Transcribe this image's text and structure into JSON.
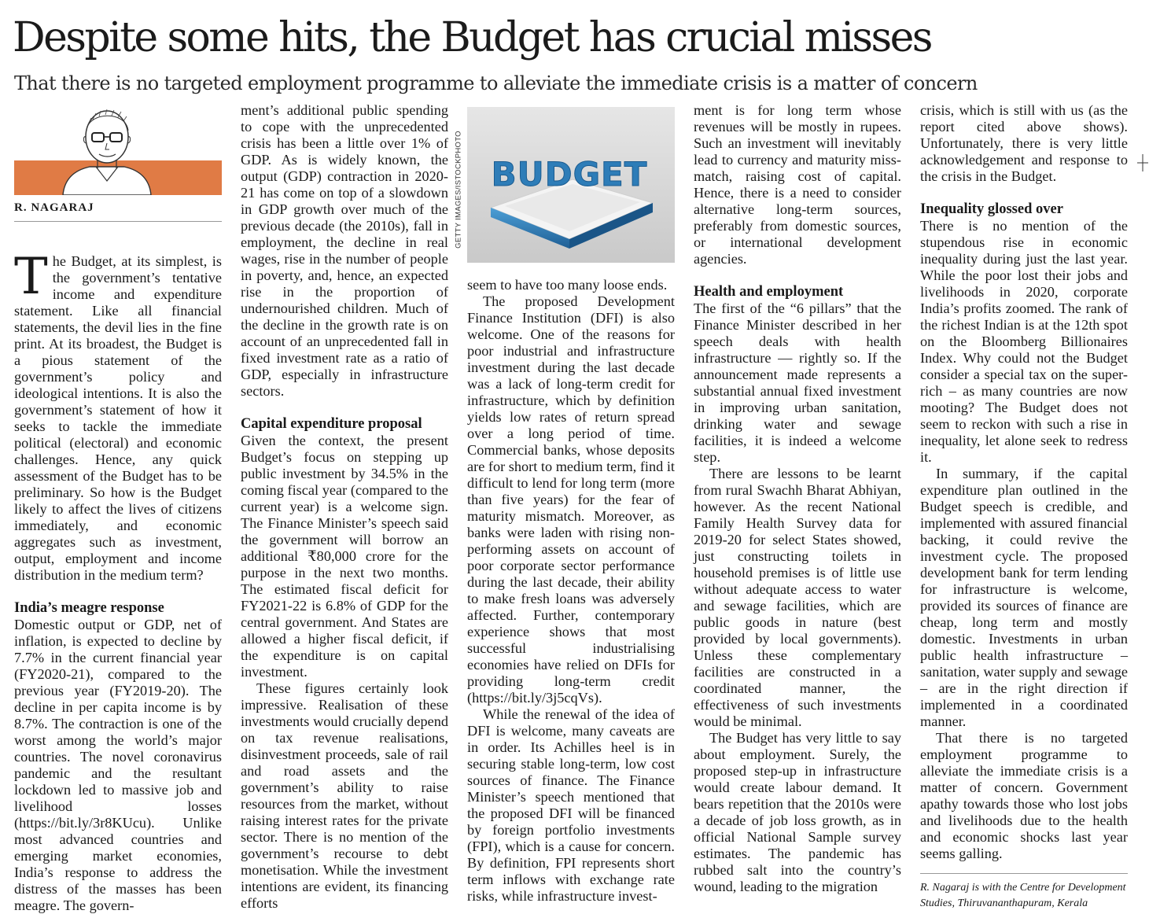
{
  "headline": "Despite some hits, the Budget has crucial misses",
  "deck": "That there is no targeted employment programme to alleviate the immediate crisis is a matter of concern",
  "author": {
    "name": "R. NAGARAJ",
    "portrait_icon": "author-portrait-sketch"
  },
  "photo": {
    "label": "BUDGET",
    "credit": "GETTY IMAGES/ISTOCKPHOTO"
  },
  "article": {
    "dropcap": "T",
    "col1": {
      "lede": "he Budget, at its simplest, is the government’s tentative income and expenditure statement. Like all financial statements, the devil lies in the fine print. At its broadest, the Budget is a pious statement of the government’s policy and ideological intentions. It is also the government’s statement of how it seeks to tackle the immediate political (electoral) and economic challenges. Hence, any quick assessment of the Budget has to be preliminary. So how is the Budget likely to affect the lives of citizens immediately, and economic aggregates such as investment, output, employment and income distribution in the medium term?",
      "h1": "India’s meagre response",
      "p1": "Domestic output or GDP, net of inflation, is expected to decline by 7.7% in the current financial year (FY2020-21), compared to the previous year (FY2019-20). The decline in per capita income is by 8.7%. The contraction is one of the worst among the world’s major countries. The novel coronavirus pandemic and the resultant lockdown led to massive job and livelihood losses (https://bit.ly/3r8KUcu). Unlike most advanced countries and emerging market economies, India’s response to address the distress of the masses has been meagre. The govern-"
    },
    "col2": {
      "p1": "ment’s additional public spending to cope with the unprecedented crisis has been a little over 1% of GDP. As is widely known, the output (GDP) contraction in 2020-21 has come on top of a slowdown in GDP growth over much of the previous decade (the 2010s), fall in employment, the decline in real wages, rise in the number of people in poverty, and, hence, an expected rise in the proportion of undernourished children. Much of the decline in the growth rate is on account of an unprecedented fall in fixed investment rate as a ratio of GDP, especially in infrastructure sectors.",
      "h1": "Capital expenditure proposal",
      "p2": "Given the context, the present Budget’s focus on stepping up public investment by 34.5% in the coming fiscal year (compared to the current year) is a welcome sign. The Finance Minister’s speech said the government will borrow an additional ₹80,000 crore for the purpose in the next two months. The estimated fiscal deficit for FY2021-22 is 6.8% of GDP for the central government. And States are allowed a higher fiscal deficit, if the expenditure is on capital investment.",
      "p3": "These figures certainly look impressive. Realisation of these investments would crucially depend on tax revenue realisations, disinvestment proceeds, sale of rail and road assets and the government’s ability to raise resources from the market, without raising interest rates for the private sector. There is no mention of the government’s recourse to debt monetisation. While the investment intentions are evident, its financing efforts"
    },
    "col3": {
      "p1": "seem to have too many loose ends.",
      "p2": "The proposed Development Finance Institution (DFI) is also welcome. One of the reasons for poor industrial and infrastructure investment during the last decade was a lack of long-term credit for infrastructure, which by definition yields low rates of return spread over a long period of time. Commercial banks, whose deposits are for short to medium term, find it difficult to lend for long term (more than five years) for the fear of maturity mismatch. Moreover, as banks were laden with rising non-performing assets on account of poor corporate sector performance during the last decade, their ability to make fresh loans was adversely affected. Further, contemporary experience shows that most successful industrialising economies have relied on DFIs for providing long-term credit (https://bit.ly/3j5cqVs).",
      "p3": "While the renewal of the idea of DFI is welcome, many caveats are in order. Its Achilles heel is in securing stable long-term, low cost sources of finance. The Finance Minister’s speech mentioned that the proposed DFI will be financed by foreign portfolio investments (FPI), which is a cause for concern. By definition, FPI represents short term inflows with exchange rate risks, while infrastructure invest-"
    },
    "col4": {
      "p1": "ment is for long term whose revenues will be mostly in rupees. Such an investment will inevitably lead to currency and maturity miss-match, raising cost of capital. Hence, there is a need to consider alternative long-term sources, preferably from domestic sources, or international development agencies.",
      "h1": "Health and employment",
      "p2": "The first of the “6 pillars” that the Finance Minister described in her speech deals with health infrastructure — rightly so. If the announcement made represents a substantial annual fixed investment in improving urban sanitation, drinking water and sewage facilities, it is indeed a welcome step.",
      "p3": "There are lessons to be learnt from rural Swachh Bharat Abhiyan, however. As the recent National Family Health Survey data for 2019-20 for select States showed, just constructing toilets in household premises is of little use without adequate access to water and sewage facilities, which are public goods in nature (best provided by local governments). Unless these complementary facilities are constructed in a coordinated manner, the effectiveness of such investments would be minimal.",
      "p4": "The Budget has very little to say about employment. Surely, the proposed step-up in infrastructure would create labour demand. It bears repetition that the 2010s were a decade of job loss growth, as in official National Sample survey estimates. The pandemic has rubbed salt into the country’s wound, leading to the migration"
    },
    "col5": {
      "p1": "crisis, which is still with us (as the report cited above shows). Unfortunately, there is very little acknowledgement and response to the crisis in the Budget.",
      "h1": "Inequality glossed over",
      "p2": "There is no mention of the stupendous rise in economic inequality during just the last year. While the poor lost their jobs and livelihoods in 2020, corporate India’s profits zoomed. The rank of the richest Indian is at the 12th spot on the Bloomberg Billionaires Index. Why could not the Budget consider a special tax on the super-rich – as many countries are now mooting? The Budget does not seem to reckon with such a rise in inequality, let alone seek to redress it.",
      "p3": "In summary, if the capital expenditure plan outlined in the Budget speech is credible, and implemented with assured financial backing, it could revive the investment cycle. The proposed development bank for term lending for infrastructure is welcome, provided its sources of finance are cheap, long term and mostly domestic. Investments in urban public health infrastructure – sanitation, water supply and sewage – are in the right direction if implemented in a coordinated manner.",
      "p4": "That there is no targeted employment programme to alleviate the immediate crisis is a matter of concern. Government apathy towards those who lost jobs and livelihoods due to the health and economic shocks last year seems galling.",
      "about": "R. Nagaraj is with the Centre for Development Studies, Thiruvananthapuram, Kerala"
    }
  },
  "colors": {
    "portrait_band": "#e07b45",
    "photo_bg": "#dcdcdc",
    "budget_blue": "#2e7db8",
    "text": "#1a1a1a"
  }
}
